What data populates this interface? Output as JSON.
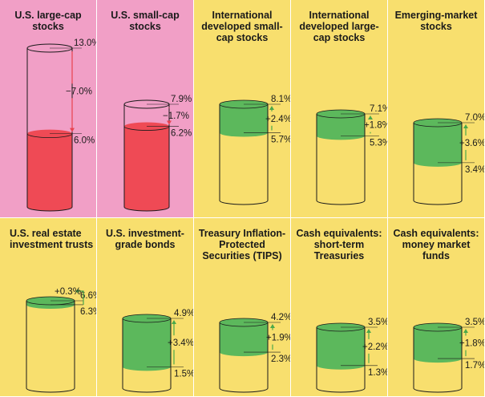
{
  "chart_data": [
    {
      "type": "bar",
      "title": "U.S. large-cap stocks",
      "upper": 13.0,
      "lower": 6.0,
      "change_label": "−7.0%",
      "upper_label": "13.0%",
      "lower_label": "6.0%",
      "direction": "down"
    },
    {
      "type": "bar",
      "title": "U.S. small-cap stocks",
      "upper": 7.9,
      "lower": 6.2,
      "change_label": "−1.7%",
      "upper_label": "7.9%",
      "lower_label": "6.2%",
      "direction": "down"
    },
    {
      "type": "bar",
      "title": "International developed small-cap stocks",
      "upper": 8.1,
      "lower": 5.7,
      "change_label": "+2.4%",
      "upper_label": "8.1%",
      "lower_label": "5.7%",
      "direction": "up"
    },
    {
      "type": "bar",
      "title": "International developed large-cap stocks",
      "upper": 7.1,
      "lower": 5.3,
      "change_label": "+1.8%",
      "upper_label": "7.1%",
      "lower_label": "5.3%",
      "direction": "up"
    },
    {
      "type": "bar",
      "title": "Emerging-market stocks",
      "upper": 7.0,
      "lower": 3.4,
      "change_label": "+3.6%",
      "upper_label": "7.0%",
      "lower_label": "3.4%",
      "direction": "up"
    },
    {
      "type": "bar",
      "title": "U.S. real estate investment trusts",
      "upper": 6.6,
      "lower": 6.3,
      "change_label": "+0.3%",
      "upper_label": "6.6%",
      "lower_label": "6.3%",
      "direction": "up"
    },
    {
      "type": "bar",
      "title": "U.S. investment-grade bonds",
      "upper": 4.9,
      "lower": 1.5,
      "change_label": "+3.4%",
      "upper_label": "4.9%",
      "lower_label": "1.5%",
      "direction": "up"
    },
    {
      "type": "bar",
      "title": "Treasury Inflation-Protected Securities (TIPS)",
      "upper": 4.2,
      "lower": 2.3,
      "change_label": "+1.9%",
      "upper_label": "4.2%",
      "lower_label": "2.3%",
      "direction": "up"
    },
    {
      "type": "bar",
      "title": "Cash equivalents: short-term Treasuries",
      "upper": 3.5,
      "lower": 1.3,
      "change_label": "+2.2%",
      "upper_label": "3.5%",
      "lower_label": "1.3%",
      "direction": "up"
    },
    {
      "type": "bar",
      "title": "Cash equivalents: money market funds",
      "upper": 3.5,
      "lower": 1.7,
      "change_label": "+1.8%",
      "upper_label": "3.5%",
      "lower_label": "1.7%",
      "direction": "up"
    }
  ],
  "colors": {
    "pink_bg": "#f19fc6",
    "yellow_bg": "#f8df6e",
    "red_fill": "#ef4a55",
    "green_fill": "#5cb85c",
    "down_arrow": "#e8424f",
    "up_arrow": "#4aa84a",
    "outline": "#1a1a1a"
  }
}
